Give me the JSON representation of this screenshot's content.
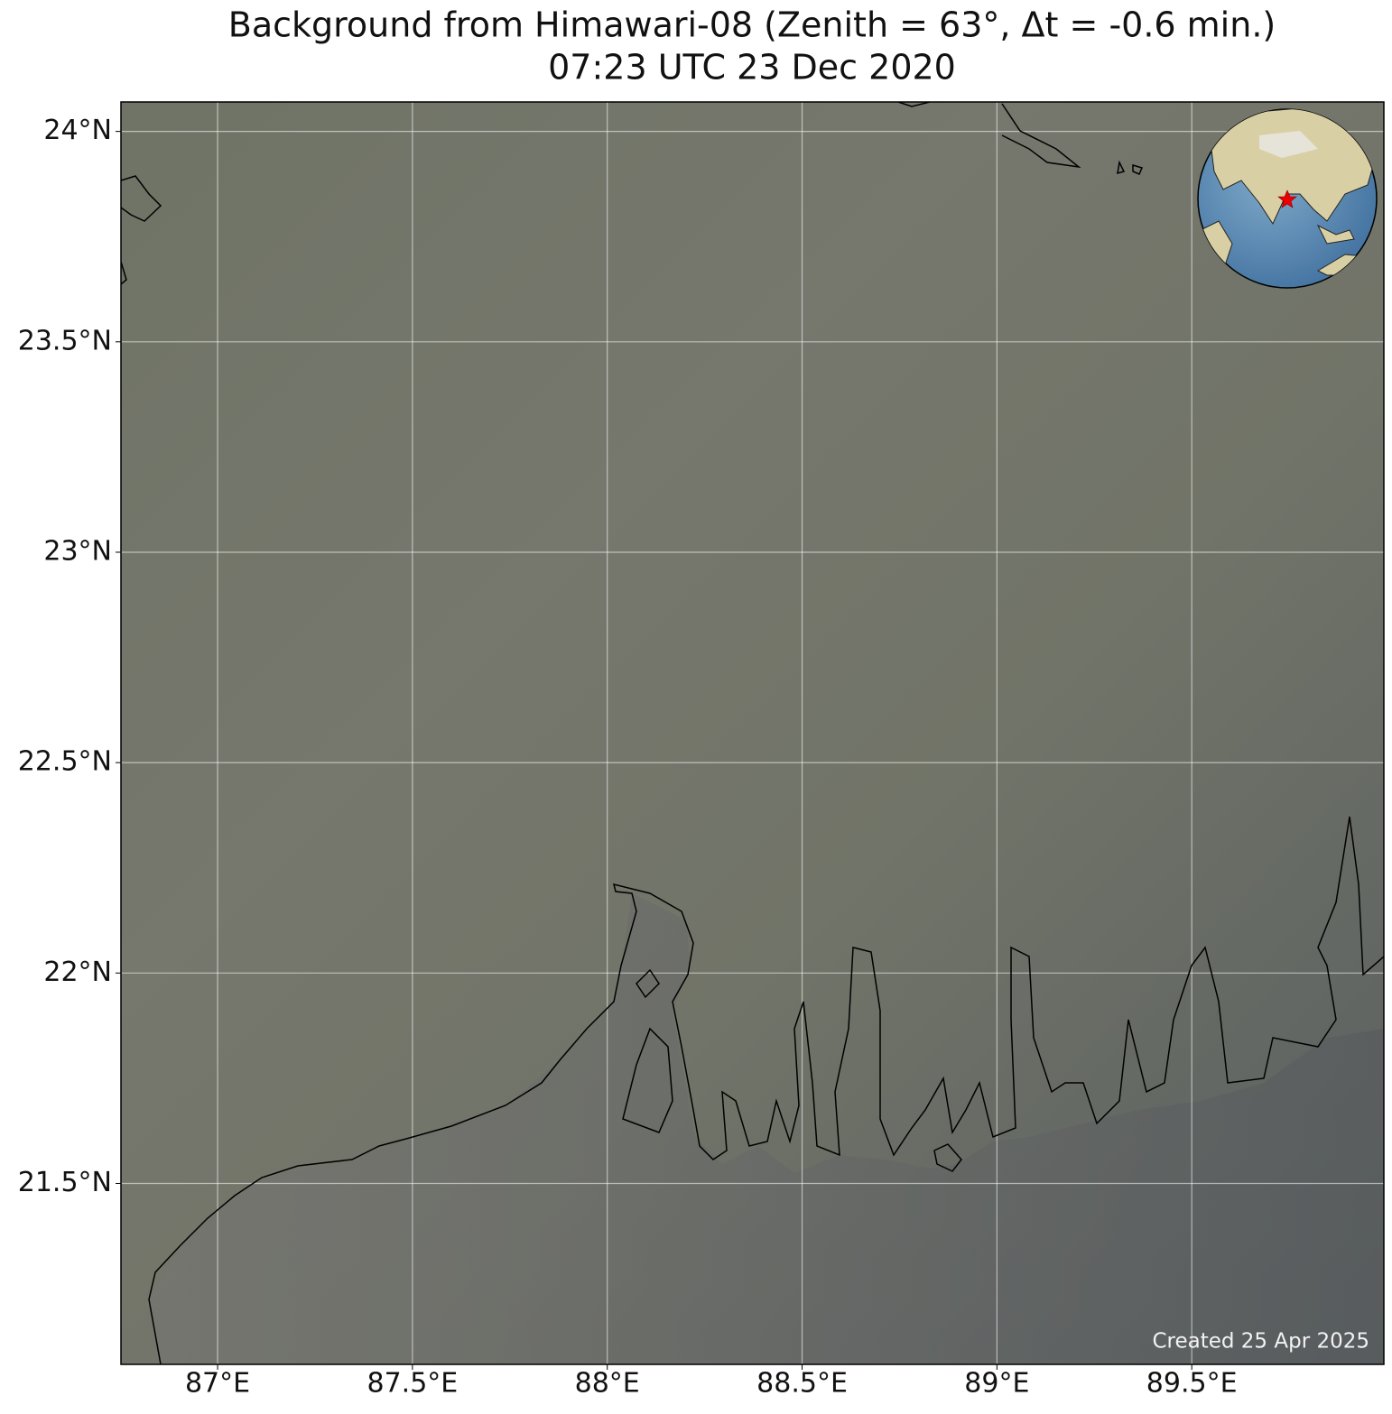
{
  "title": [
    "Background from Himawari-08 (Zenith = 63°, Δt = -0.6 min.)",
    "07:23 UTC 23 Dec 2020"
  ],
  "map": {
    "xlim": [
      86.752,
      89.993
    ],
    "ylim": [
      21.07,
      24.07
    ],
    "xticks": [
      {
        "value": 87,
        "label": "87°E"
      },
      {
        "value": 87.5,
        "label": "87.5°E"
      },
      {
        "value": 88,
        "label": "88°E"
      },
      {
        "value": 88.5,
        "label": "88.5°E"
      },
      {
        "value": 89,
        "label": "89°E"
      },
      {
        "value": 89.5,
        "label": "89.5°E"
      }
    ],
    "yticks": [
      {
        "value": 21.5,
        "label": "21.5°N"
      },
      {
        "value": 22,
        "label": "22°N"
      },
      {
        "value": 22.5,
        "label": "22.5°N"
      },
      {
        "value": 23,
        "label": "23°N"
      },
      {
        "value": 23.5,
        "label": "23.5°N"
      },
      {
        "value": 24,
        "label": "24°N"
      }
    ],
    "grid": true
  },
  "credit": "Created 25 Apr 2025"
}
